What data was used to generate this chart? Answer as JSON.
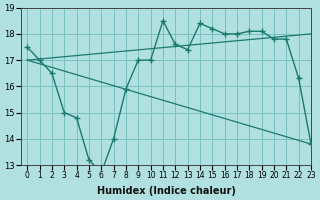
{
  "xlabel": "Humidex (Indice chaleur)",
  "background_color": "#b0e0e0",
  "grid_color": "#7abfbf",
  "line_color": "#1a7a6e",
  "x_values": [
    0,
    1,
    2,
    3,
    4,
    5,
    6,
    7,
    8,
    9,
    10,
    11,
    12,
    13,
    14,
    15,
    16,
    17,
    18,
    19,
    20,
    21,
    22,
    23
  ],
  "main_y": [
    17.5,
    17.0,
    16.5,
    15.0,
    14.8,
    13.2,
    12.7,
    14.0,
    15.9,
    17.0,
    17.0,
    18.5,
    17.6,
    17.4,
    18.4,
    18.2,
    18.0,
    18.0,
    18.1,
    18.1,
    17.8,
    17.8,
    16.3,
    13.8
  ],
  "trend1_start": 17.0,
  "trend1_end": 18.0,
  "trend2_start": 17.0,
  "trend2_end": 13.8,
  "ylim": [
    13,
    19
  ],
  "xlim": [
    -0.5,
    23
  ],
  "yticks": [
    13,
    14,
    15,
    16,
    17,
    18,
    19
  ]
}
